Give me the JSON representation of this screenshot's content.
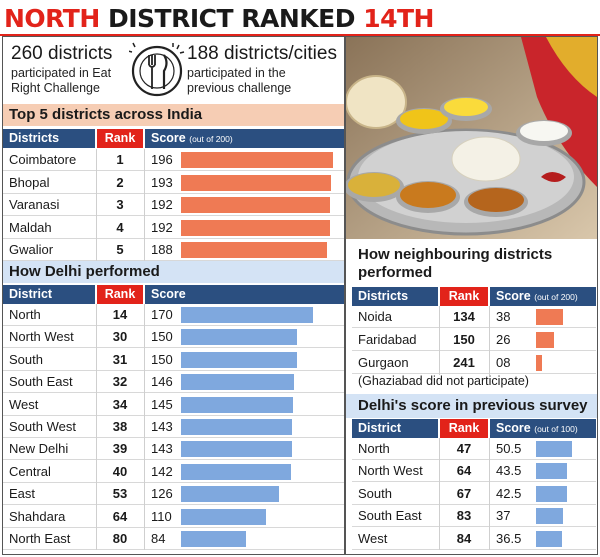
{
  "headline": {
    "part1": "NORTH",
    "part2": " DISTRICT RANKED ",
    "part3": "14TH"
  },
  "stats": {
    "left_number": "260 districts",
    "left_text": "participated in Eat\nRight Challenge",
    "right_number": "188 districts/cities",
    "right_text": "participated in the\nprevious challenge",
    "icon": "plate-fork-knife-icon"
  },
  "photo": {
    "icon": "thali-food-plate-icon"
  },
  "colors": {
    "accent_red": "#e2231a",
    "header_blue": "#2b4f80",
    "bar_orange": "#ef7a54",
    "bar_blue": "#7fa8de"
  },
  "chart_data": [
    {
      "type": "bar",
      "title": "Top 5 districts across India",
      "headers": {
        "name": "Districts",
        "rank": "Rank",
        "score": "Score",
        "score_note": "(out of 200)"
      },
      "categories": [
        "Coimbatore",
        "Bhopal",
        "Varanasi",
        "Maldah",
        "Gwalior"
      ],
      "ranks": [
        "1",
        "2",
        "3",
        "4",
        "5"
      ],
      "values": [
        196,
        193,
        192,
        192,
        188
      ],
      "value_labels": [
        "196",
        "193",
        "192",
        "192",
        "188"
      ],
      "xlim": [
        0,
        200
      ]
    },
    {
      "type": "bar",
      "title": "How Delhi performed",
      "headers": {
        "name": "District",
        "rank": "Rank",
        "score": "Score",
        "score_note": ""
      },
      "categories": [
        "North",
        "North West",
        "South",
        "South East",
        "West",
        "South West",
        "New Delhi",
        "Central",
        "East",
        "Shahdara",
        "North East"
      ],
      "ranks": [
        "14",
        "30",
        "31",
        "32",
        "34",
        "38",
        "39",
        "40",
        "53",
        "64",
        "80"
      ],
      "values": [
        170,
        150,
        150,
        146,
        145,
        143,
        143,
        142,
        126,
        110,
        84
      ],
      "value_labels": [
        "170",
        "150",
        "150",
        "146",
        "145",
        "143",
        "143",
        "142",
        "126",
        "110",
        "84"
      ],
      "xlim": [
        0,
        200
      ]
    },
    {
      "type": "bar",
      "title": "How neighbouring districts\nperformed",
      "headers": {
        "name": "Districts",
        "rank": "Rank",
        "score": "Score",
        "score_note": "(out of 200)"
      },
      "categories": [
        "Noida",
        "Faridabad",
        "Gurgaon"
      ],
      "ranks": [
        "134",
        "150",
        "241"
      ],
      "values": [
        38,
        26,
        8
      ],
      "value_labels": [
        "38",
        "26",
        "08"
      ],
      "xlim": [
        0,
        200
      ],
      "note": "(Ghaziabad did not participate)"
    },
    {
      "type": "bar",
      "title": "Delhi's score in previous survey",
      "headers": {
        "name": "District",
        "rank": "Rank",
        "score": "Score",
        "score_note": "(out of 100)"
      },
      "categories": [
        "North",
        "North West",
        "South",
        "South East",
        "West"
      ],
      "ranks": [
        "47",
        "64",
        "67",
        "83",
        "84"
      ],
      "values": [
        50.5,
        43.5,
        42.5,
        37,
        36.5
      ],
      "value_labels": [
        "50.5",
        "43.5",
        "42.5",
        "37",
        "36.5"
      ],
      "xlim": [
        0,
        100
      ]
    }
  ]
}
